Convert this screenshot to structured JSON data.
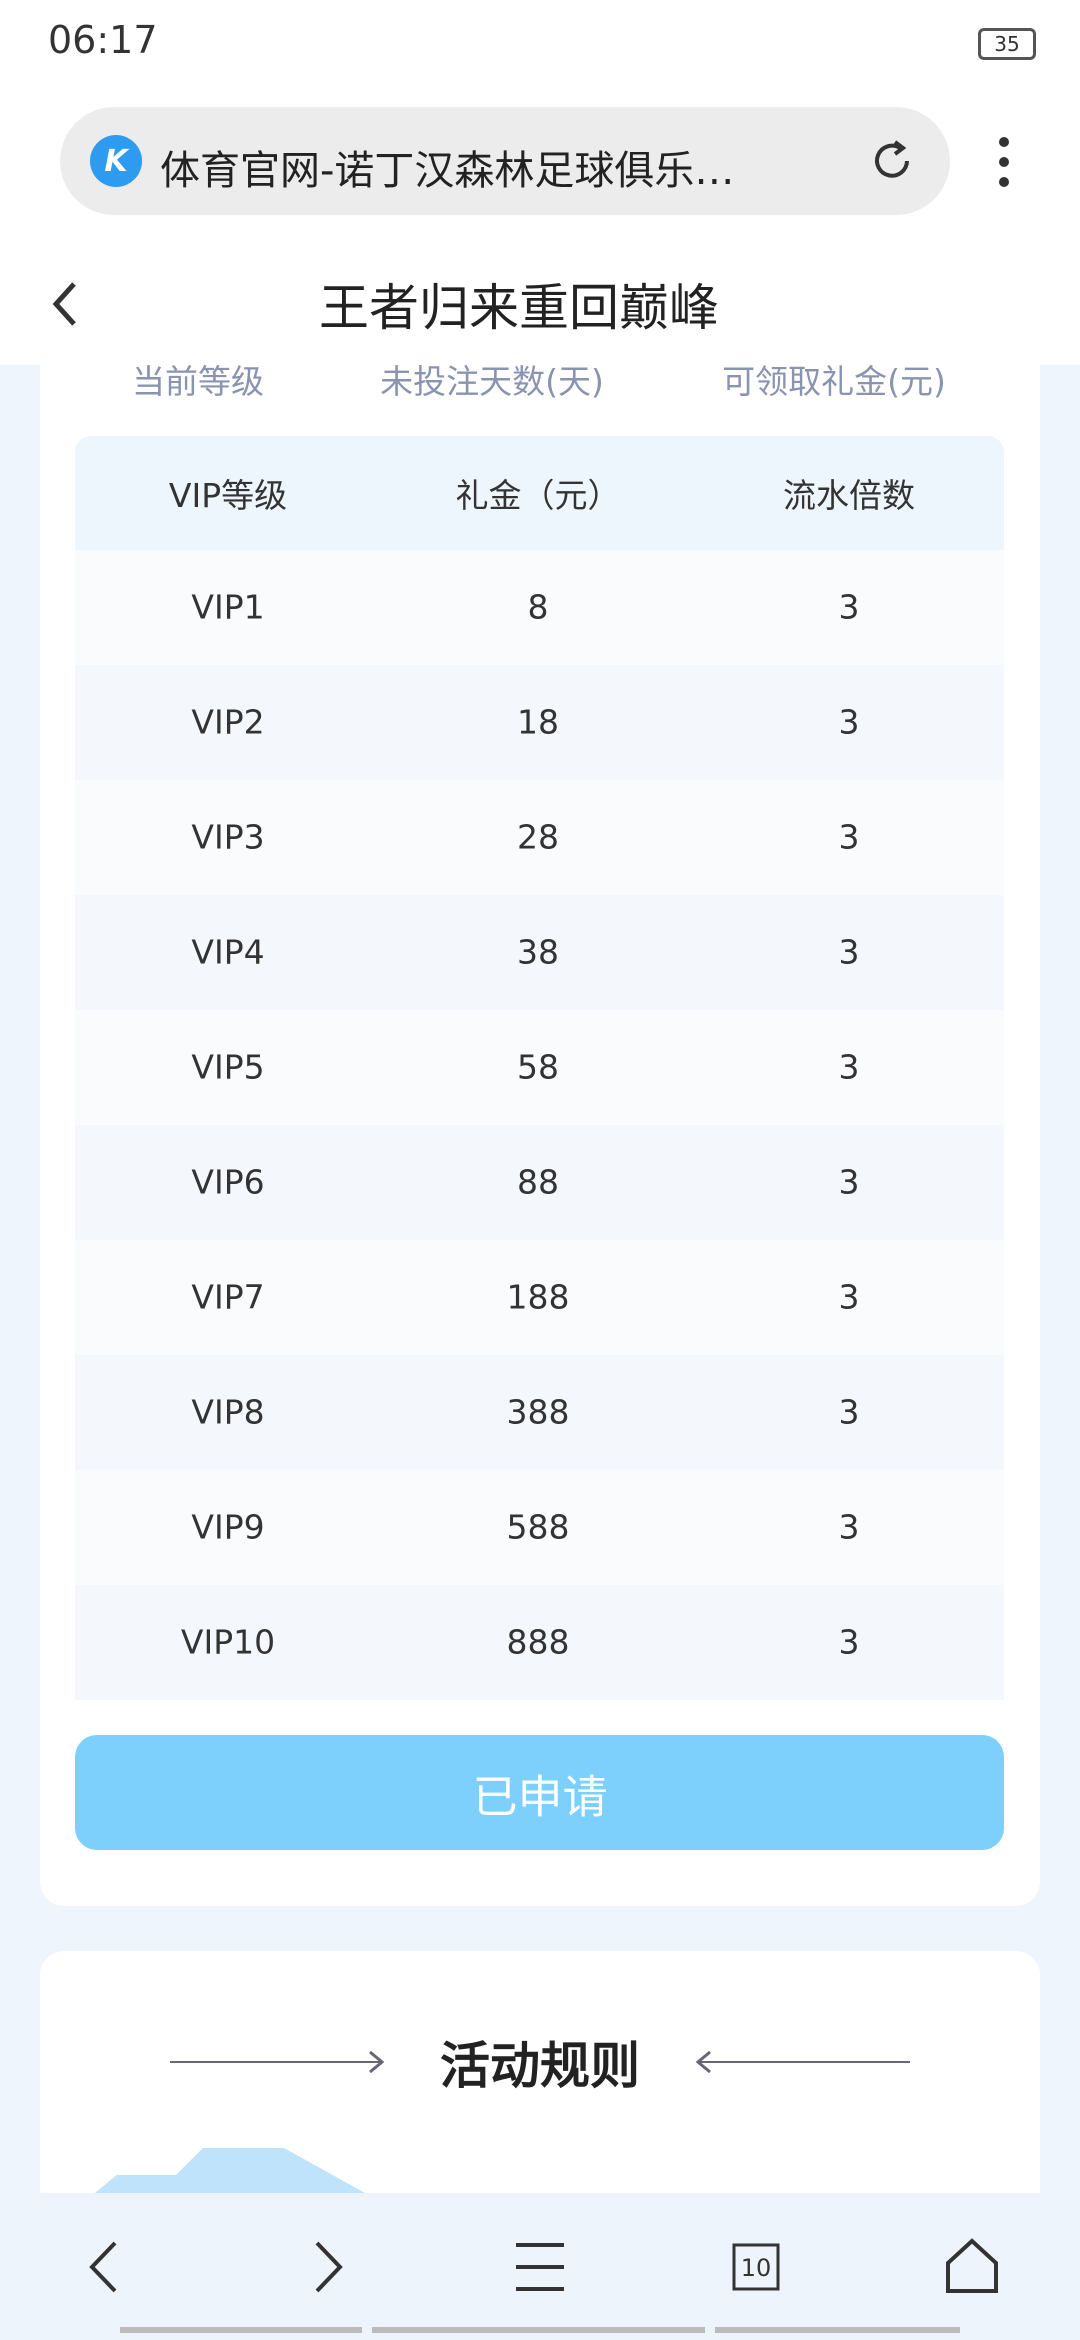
{
  "status_bar": {
    "time": "06:17",
    "battery": "35"
  },
  "browser": {
    "page_title": "体育官网-诺丁汉森林足球俱乐…",
    "tab_count": "10"
  },
  "header": {
    "title": "王者归来重回巅峰"
  },
  "summary_labels": [
    "当前等级",
    "未投注天数(天)",
    "可领取礼金(元)"
  ],
  "table": {
    "headers": [
      "VIP等级",
      "礼金（元）",
      "流水倍数"
    ],
    "rows": [
      [
        "VIP1",
        8,
        3
      ],
      [
        "VIP2",
        18,
        3
      ],
      [
        "VIP3",
        28,
        3
      ],
      [
        "VIP4",
        38,
        3
      ],
      [
        "VIP5",
        58,
        3
      ],
      [
        "VIP6",
        88,
        3
      ],
      [
        "VIP7",
        188,
        3
      ],
      [
        "VIP8",
        388,
        3
      ],
      [
        "VIP9",
        588,
        3
      ],
      [
        "VIP10",
        888,
        3
      ]
    ]
  },
  "button": "已申请",
  "rules": {
    "title": "活动规则"
  }
}
